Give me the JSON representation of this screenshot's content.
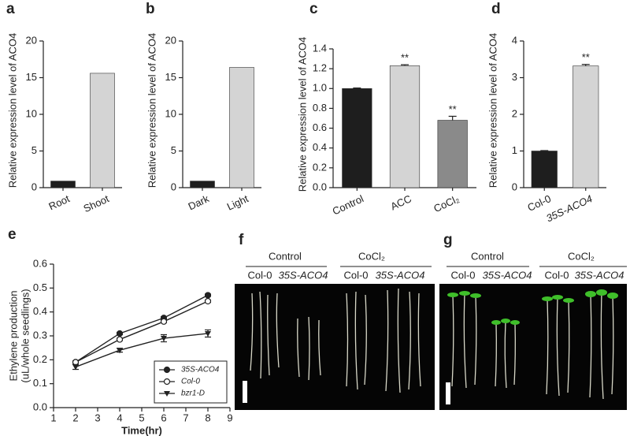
{
  "chart_data": [
    {
      "type": "bar",
      "panel_label": "a",
      "ylabel": "Relative expression level of ACO4",
      "categories": [
        "Root",
        "Shoot"
      ],
      "values": [
        0.9,
        15.6
      ],
      "colors": [
        "#1e1e1e",
        "#d4d4d4"
      ],
      "ylim": [
        0,
        20
      ],
      "yticks": [
        0,
        5,
        10,
        15,
        20
      ]
    },
    {
      "type": "bar",
      "panel_label": "b",
      "ylabel": "Relative expression level of ACO4",
      "categories": [
        "Dark",
        "Light"
      ],
      "values": [
        0.9,
        16.4
      ],
      "colors": [
        "#1e1e1e",
        "#d4d4d4"
      ],
      "ylim": [
        0,
        20
      ],
      "yticks": [
        0,
        5,
        10,
        15,
        20
      ]
    },
    {
      "type": "bar",
      "panel_label": "c",
      "ylabel": "Relative expression level of ACO4",
      "categories": [
        "Control",
        "ACC",
        "CoCl₂"
      ],
      "values": [
        1.0,
        1.23,
        0.68
      ],
      "errors": [
        0.005,
        0.01,
        0.04
      ],
      "significance": [
        null,
        "**",
        "**"
      ],
      "colors": [
        "#1e1e1e",
        "#d4d4d4",
        "#8a8a8a"
      ],
      "ylim": [
        0,
        1.4
      ],
      "yticks": [
        {
          "value": 0,
          "label": "0.0"
        },
        0.2,
        0.4,
        0.6,
        0.8,
        {
          "value": 1,
          "label": "1.0"
        },
        1.2,
        1.4
      ]
    },
    {
      "type": "bar",
      "panel_label": "d",
      "ylabel": "Relative expression level of ACO4",
      "categories": [
        "Col-0",
        "35S-ACO4"
      ],
      "values": [
        1.0,
        3.32
      ],
      "errors": [
        0.01,
        0.04
      ],
      "significance": [
        null,
        "**"
      ],
      "colors": [
        "#1e1e1e",
        "#d4d4d4"
      ],
      "ylim": [
        0,
        4
      ],
      "yticks": [
        0,
        1,
        2,
        3,
        4
      ]
    },
    {
      "type": "line",
      "panel_label": "e",
      "xlabel": "Time(hr)",
      "ylabel": [
        "Ethylene production",
        "(uL/whole seedlings)"
      ],
      "x": [
        2,
        4,
        6,
        8
      ],
      "series": [
        {
          "name": "35S-ACO4",
          "marker": "filled-circle",
          "values": [
            0.19,
            0.31,
            0.375,
            0.47
          ],
          "errors": [
            0.005,
            0.005,
            0.005,
            0.005
          ]
        },
        {
          "name": "Col-0",
          "marker": "open-circle",
          "values": [
            0.19,
            0.285,
            0.36,
            0.445
          ],
          "errors": [
            0.005,
            0.005,
            0.005,
            0.005
          ]
        },
        {
          "name": "bzr1-D",
          "marker": "triangle",
          "values": [
            0.17,
            0.24,
            0.29,
            0.31
          ],
          "errors": [
            0.01,
            0.008,
            0.015,
            0.015
          ]
        }
      ],
      "xlim": [
        1,
        9
      ],
      "xticks": [
        1,
        2,
        3,
        4,
        5,
        6,
        7,
        8,
        9
      ],
      "ylim": [
        0,
        0.6
      ],
      "yticks": [
        {
          "value": 0,
          "label": "0.0"
        },
        0.1,
        0.2,
        0.3,
        0.4,
        0.5,
        0.6
      ],
      "legend": "lower-right"
    }
  ],
  "panels": [
    {
      "label": "f",
      "groups": [
        {
          "label": "Control",
          "columns": [
            "Col-0",
            "35S-ACO4"
          ]
        },
        {
          "label": "CoCl₂",
          "columns": [
            "Col-0",
            "35S-ACO4"
          ]
        }
      ]
    },
    {
      "label": "g",
      "groups": [
        {
          "label": "Control",
          "columns": [
            "Col-0",
            "35S-ACO4"
          ]
        },
        {
          "label": "CoCl₂",
          "columns": [
            "Col-0",
            "35S-ACO4"
          ]
        }
      ]
    }
  ]
}
